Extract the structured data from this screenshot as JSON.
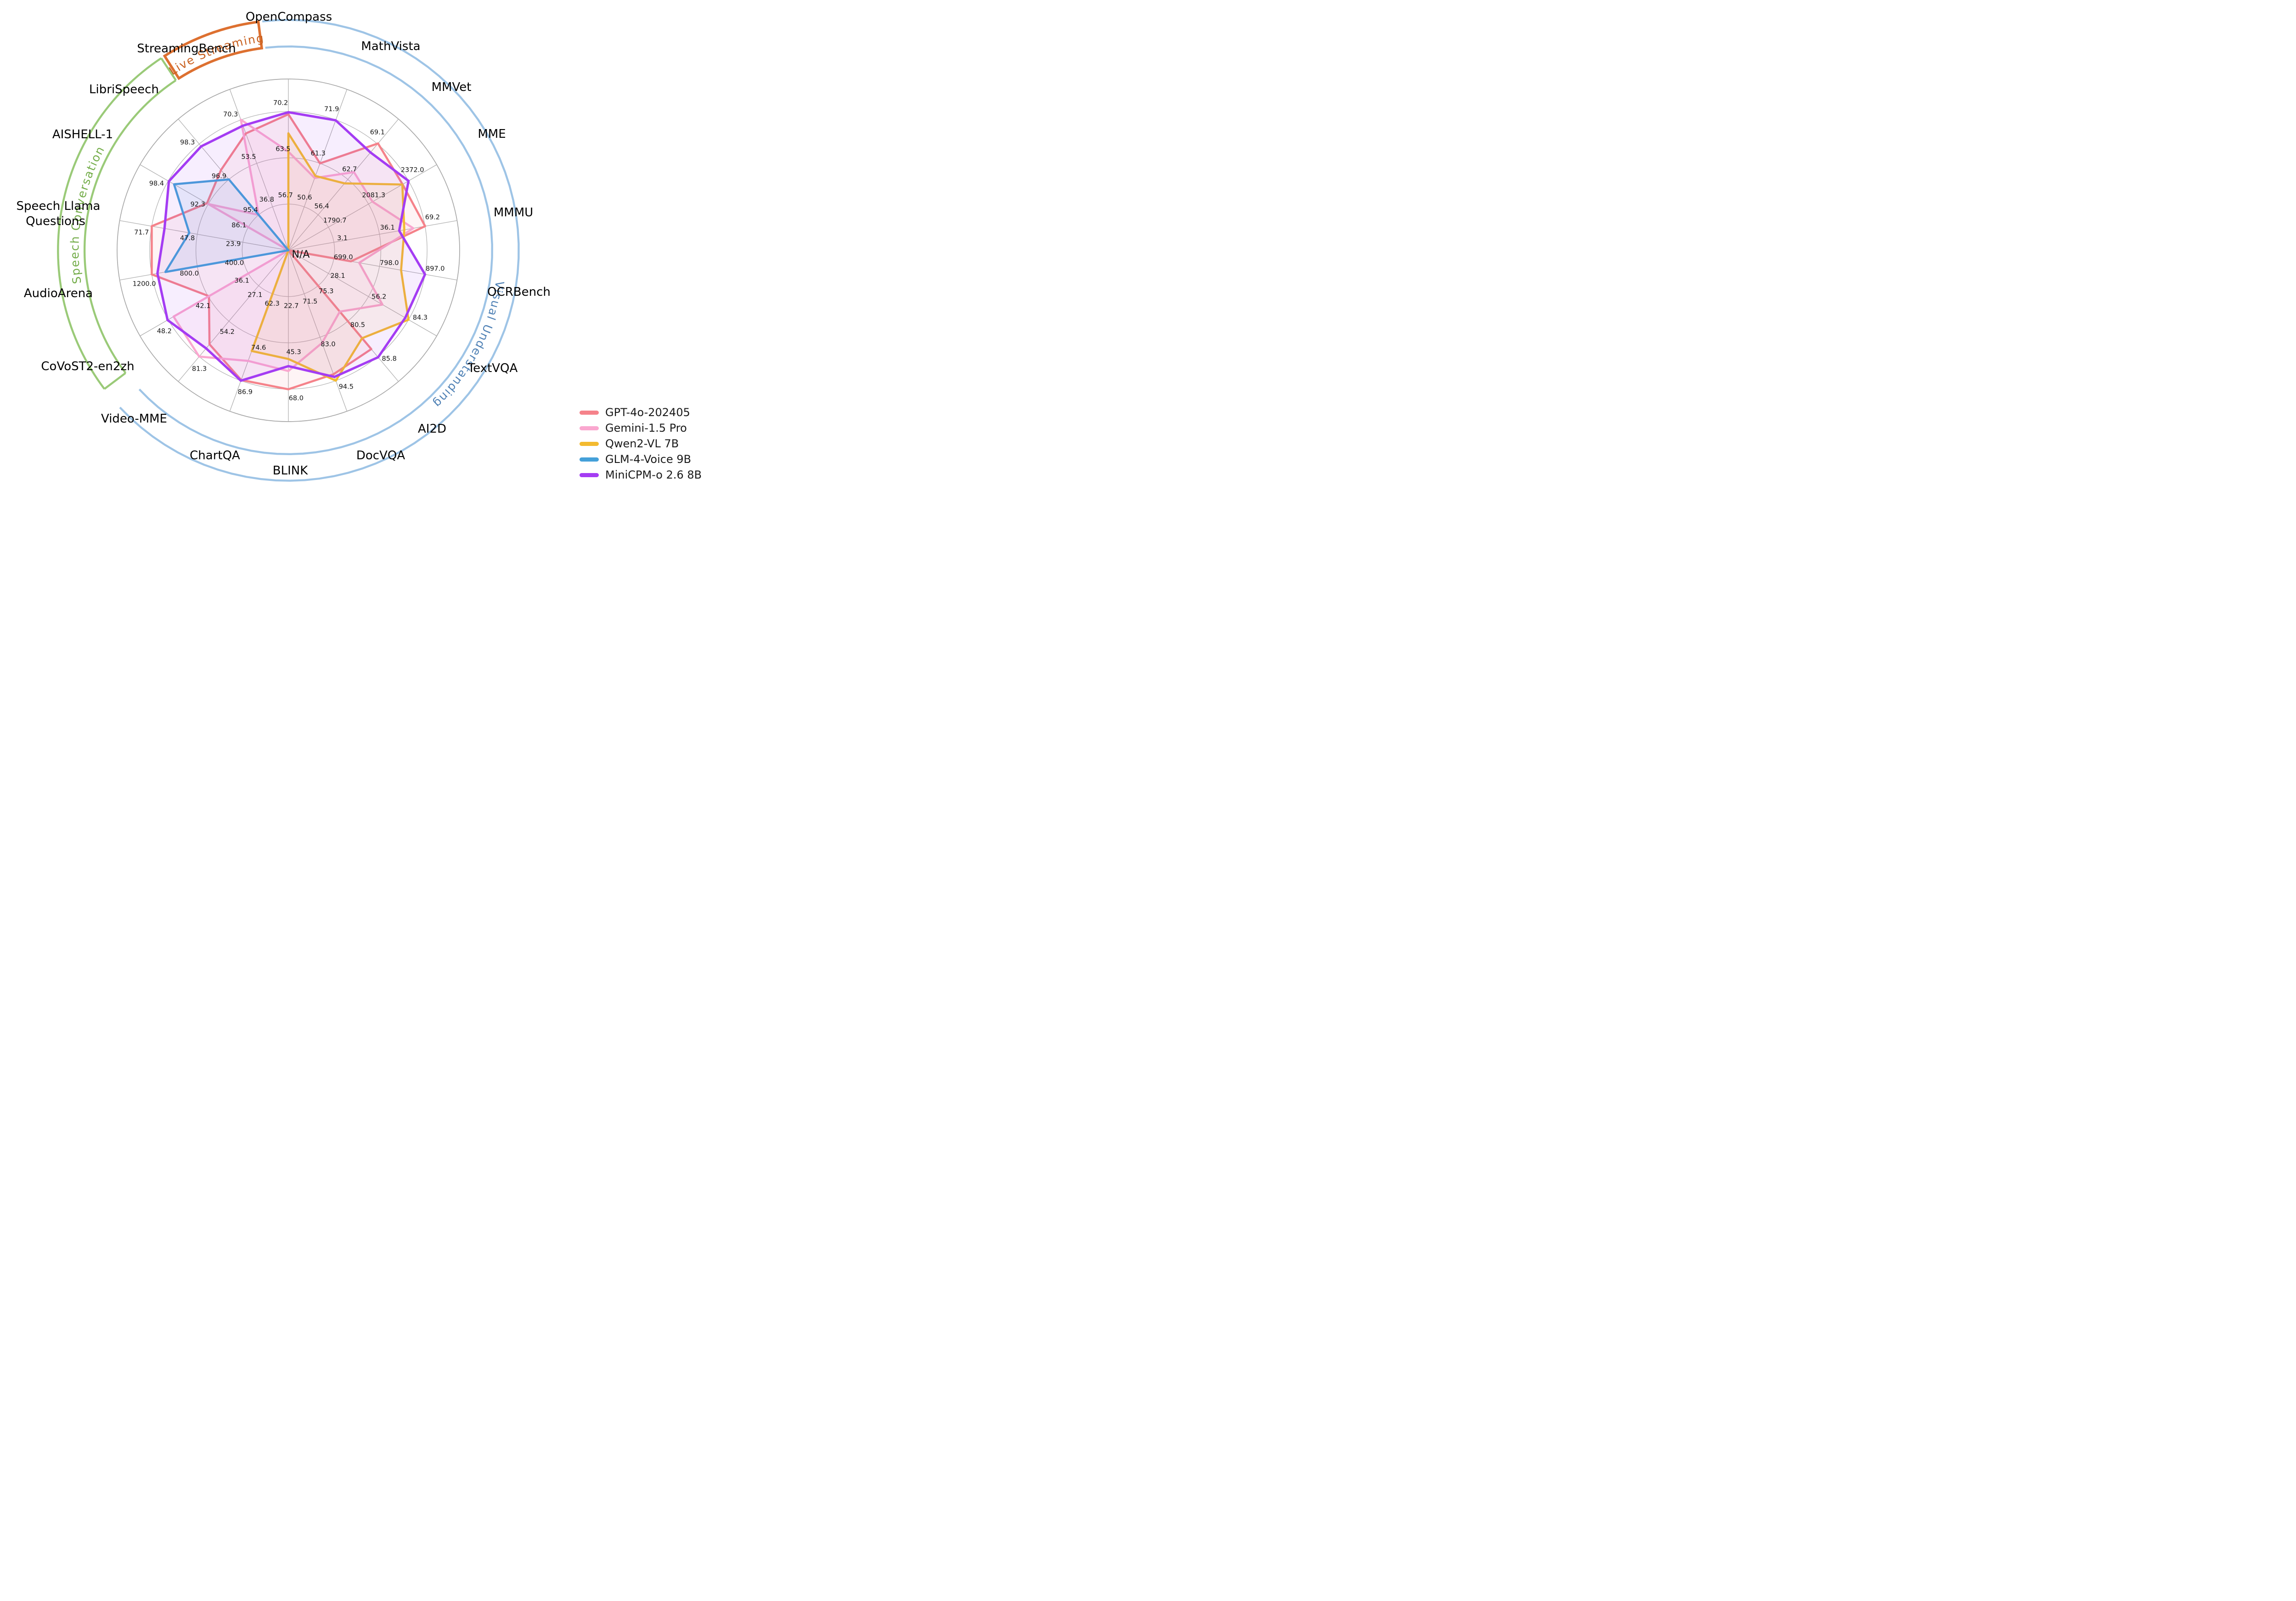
{
  "figure": {
    "title": "",
    "center_label": "N/A"
  },
  "chart_data": {
    "type": "radar",
    "rings_per_axis": 3,
    "grid": true,
    "center_label": "N/A",
    "axes": [
      {
        "label": "OpenCompass",
        "label_lines": [
          "OpenCompass"
        ],
        "ticks": [
          56.7,
          63.5,
          70.2
        ],
        "tick_labels": [
          "56.7",
          "63.5",
          "70.2"
        ]
      },
      {
        "label": "MathVista",
        "label_lines": [
          "MathVista"
        ],
        "ticks": [
          50.6,
          61.3,
          71.9
        ],
        "tick_labels": [
          "50.6",
          "61.3",
          "71.9"
        ]
      },
      {
        "label": "MMVet",
        "label_lines": [
          "MMVet"
        ],
        "ticks": [
          56.4,
          62.7,
          69.1
        ],
        "tick_labels": [
          "56.4",
          "62.7",
          "69.1"
        ]
      },
      {
        "label": "MME",
        "label_lines": [
          "MME"
        ],
        "ticks": [
          1790.7,
          2081.3,
          2372.0
        ],
        "tick_labels": [
          "1790.7",
          "2081.3",
          "2372.0"
        ]
      },
      {
        "label": "MMMU",
        "label_lines": [
          "MMMU"
        ],
        "ticks": [
          3.1,
          36.1,
          69.2
        ],
        "tick_labels": [
          "3.1",
          "36.1",
          "69.2"
        ]
      },
      {
        "label": "OCRBench",
        "label_lines": [
          "OCRBench"
        ],
        "ticks": [
          699.0,
          798.0,
          897.0
        ],
        "tick_labels": [
          "699.0",
          "798.0",
          "897.0"
        ]
      },
      {
        "label": "TextVQA",
        "label_lines": [
          "TextVQA"
        ],
        "ticks": [
          28.1,
          56.2,
          84.3
        ],
        "tick_labels": [
          "28.1",
          "56.2",
          "84.3"
        ]
      },
      {
        "label": "AI2D",
        "label_lines": [
          "AI2D"
        ],
        "ticks": [
          75.3,
          80.5,
          85.8
        ],
        "tick_labels": [
          "75.3",
          "80.5",
          "85.8"
        ]
      },
      {
        "label": "DocVQA",
        "label_lines": [
          "DocVQA"
        ],
        "ticks": [
          71.5,
          83.0,
          94.5
        ],
        "tick_labels": [
          "71.5",
          "83.0",
          "94.5"
        ]
      },
      {
        "label": "BLINK",
        "label_lines": [
          "BLINK"
        ],
        "ticks": [
          22.7,
          45.3,
          68.0
        ],
        "tick_labels": [
          "22.7",
          "45.3",
          "68.0"
        ]
      },
      {
        "label": "ChartQA",
        "label_lines": [
          "ChartQA"
        ],
        "ticks": [
          62.3,
          74.6,
          86.9
        ],
        "tick_labels": [
          "62.3",
          "74.6",
          "86.9"
        ]
      },
      {
        "label": "Video-MME",
        "label_lines": [
          "Video-MME"
        ],
        "ticks": [
          27.1,
          54.2,
          81.3
        ],
        "tick_labels": [
          "27.1",
          "54.2",
          "81.3"
        ]
      },
      {
        "label": "CoVoST2-en2zh",
        "label_lines": [
          "CoVoST2-en2zh"
        ],
        "ticks": [
          36.1,
          42.1,
          48.2
        ],
        "tick_labels": [
          "36.1",
          "42.1",
          "48.2"
        ]
      },
      {
        "label": "AudioArena",
        "label_lines": [
          "AudioArena"
        ],
        "ticks": [
          400.0,
          800.0,
          1200.0
        ],
        "tick_labels": [
          "400.0",
          "800.0",
          "1200.0"
        ]
      },
      {
        "label": "Speech Llama Questions",
        "label_lines": [
          "Speech Llama",
          "Questions"
        ],
        "ticks": [
          23.9,
          47.8,
          71.7
        ],
        "tick_labels": [
          "23.9",
          "47.8",
          "71.7"
        ]
      },
      {
        "label": "AISHELL-1",
        "label_lines": [
          "AISHELL-1"
        ],
        "ticks": [
          86.1,
          92.3,
          98.4
        ],
        "tick_labels": [
          "86.1",
          "92.3",
          "98.4"
        ]
      },
      {
        "label": "LibriSpeech",
        "label_lines": [
          "LibriSpeech"
        ],
        "ticks": [
          95.4,
          96.9,
          98.3
        ],
        "tick_labels": [
          "95.4",
          "96.9",
          "98.3"
        ]
      },
      {
        "label": "StreamingBench",
        "label_lines": [
          "StreamingBench"
        ],
        "ticks": [
          36.8,
          53.5,
          70.3
        ],
        "tick_labels": [
          "36.8",
          "53.5",
          "70.3"
        ]
      }
    ],
    "series": [
      {
        "name": "GPT-4o-202405",
        "color": "#f5828a",
        "values": [
          69.9,
          61.3,
          69.1,
          2328.7,
          69.2,
          736.0,
          null,
          84.6,
          92.8,
          68.0,
          86.7,
          71.9,
          42.0,
          1200.0,
          71.7,
          92.5,
          97.3,
          65.0
        ]
      },
      {
        "name": "Gemini-1.5 Pro",
        "color": "#faa7cf",
        "values": [
          64.4,
          57.7,
          64.0,
          2110.6,
          60.6,
          754.0,
          66.0,
          79.1,
          84.5,
          59.1,
          81.3,
          81.3,
          47.3,
          null,
          null,
          92.3,
          95.4,
          70.3
        ]
      },
      {
        "name": "Qwen2-VL 7B",
        "color": "#f3ba2f",
        "values": [
          67.1,
          58.2,
          62.0,
          2326.8,
          54.1,
          845.0,
          84.3,
          83.0,
          94.5,
          53.2,
          78.5,
          null,
          null,
          null,
          null,
          null,
          null,
          null
        ]
      },
      {
        "name": "GLM-4-Voice 9B",
        "color": "#44a0d9",
        "values": [
          null,
          null,
          null,
          null,
          null,
          null,
          null,
          null,
          null,
          null,
          null,
          null,
          null,
          1080.0,
          52.0,
          97.6,
          96.9,
          null
        ]
      },
      {
        "name": "MiniCPM-o 2.6 8B",
        "color": "#a43cf3",
        "values": [
          70.2,
          71.9,
          67.5,
          2372.0,
          50.4,
          897.0,
          82.0,
          85.8,
          93.5,
          56.7,
          86.9,
          75.0,
          48.2,
          1150.0,
          65.0,
          98.4,
          98.3,
          68.0
        ]
      }
    ],
    "categories": [
      {
        "label": "Visual Understanding",
        "band_color": "#9ec4e6",
        "text_color": "#4f81b5",
        "from_axis": "OpenCompass",
        "to_axis": "Video-MME"
      },
      {
        "label": "Speech Conversation",
        "band_color": "#9aca78",
        "text_color": "#74ad4a",
        "from_axis": "CoVoST2-en2zh",
        "to_axis": "LibriSpeech"
      },
      {
        "label": "Live Streaming",
        "band_color": "#dd7030",
        "text_color": "#c8601f",
        "from_axis": "StreamingBench",
        "to_axis": "StreamingBench"
      }
    ]
  },
  "legend": {
    "entries": [
      "GPT-4o-202405",
      "Gemini-1.5 Pro",
      "Qwen2-VL 7B",
      "GLM-4-Voice 9B",
      "MiniCPM-o 2.6 8B"
    ]
  }
}
